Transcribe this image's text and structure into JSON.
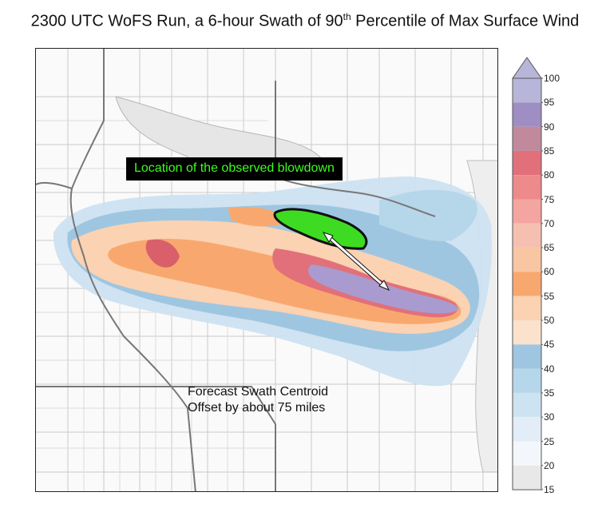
{
  "title": {
    "prefix": "2300 UTC WoFS Run, a 6-hour Swath of 90",
    "sup": "th",
    "suffix": " Percentile of Max Surface Wind"
  },
  "annotations": {
    "blowdown": "Location of the observed blowdown",
    "offset_line1": "Forecast Swath Centroid",
    "offset_line2": "Offset by about 75 miles"
  },
  "colorbar": {
    "ticks": [
      "100",
      "95",
      "90",
      "85",
      "80",
      "75",
      "70",
      "65",
      "60",
      "55",
      "50",
      "45",
      "40",
      "35",
      "30",
      "25",
      "20",
      "15"
    ],
    "colors": [
      "#b7b6d9",
      "#9e8ec4",
      "#c08a9c",
      "#e2707a",
      "#ee8a8a",
      "#f5a5a0",
      "#f6c0b0",
      "#f8c6a2",
      "#f8a86e",
      "#fbd2b2",
      "#fbe2cc",
      "#9fc6e1",
      "#b6d6ea",
      "#cee3f1",
      "#e2edf7",
      "#f3f7fc",
      "#e8e8e8",
      "#f4f4f4"
    ]
  },
  "colors": {
    "blowdown_fill": "#3ddc22",
    "swath_core": "#a99bd0",
    "swath_red": "#d9606a"
  }
}
